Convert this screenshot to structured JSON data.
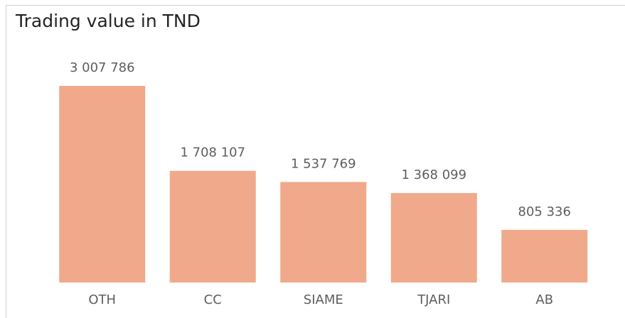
{
  "chart_data": {
    "type": "bar",
    "title": "Trading value in TND",
    "categories": [
      "OTH",
      "CC",
      "SIAME",
      "TJARI",
      "AB"
    ],
    "values": [
      3007786,
      1708107,
      1537769,
      1368099,
      805336
    ],
    "value_labels": [
      "3 007 786",
      "1 708 107",
      "1 537 769",
      "1 368 099",
      "805 336"
    ],
    "color": "#f0a98a"
  }
}
